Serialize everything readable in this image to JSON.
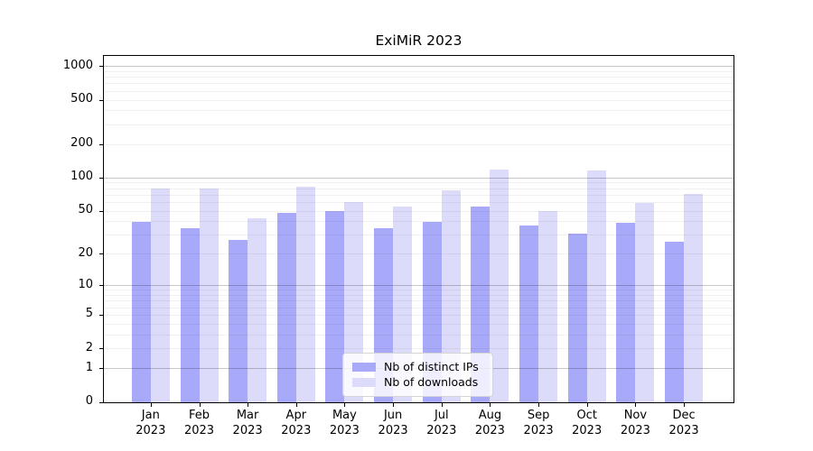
{
  "title": "ExiMiR 2023",
  "chart_data": {
    "type": "bar",
    "title": "ExiMiR 2023",
    "y_scale": "log1p",
    "grid": true,
    "legend_position": "lower center",
    "year": "2023",
    "months": [
      "Jan",
      "Feb",
      "Mar",
      "Apr",
      "May",
      "Jun",
      "Jul",
      "Aug",
      "Sep",
      "Oct",
      "Nov",
      "Dec"
    ],
    "categories": [
      "Jan 2023",
      "Feb 2023",
      "Mar 2023",
      "Apr 2023",
      "May 2023",
      "Jun 2023",
      "Jul 2023",
      "Aug 2023",
      "Sep 2023",
      "Oct 2023",
      "Nov 2023",
      "Dec 2023"
    ],
    "series": [
      {
        "name": "Nb of distinct IPs",
        "color": "#a9a9fa",
        "values": [
          40,
          35,
          27,
          48,
          50,
          35,
          40,
          55,
          37,
          31,
          39,
          26
        ]
      },
      {
        "name": "Nb of downloads",
        "color": "#dcdcfa",
        "values": [
          81,
          80,
          43,
          83,
          60,
          55,
          78,
          120,
          50,
          117,
          59,
          72
        ]
      }
    ],
    "y_ticks": [
      0,
      1,
      2,
      5,
      10,
      20,
      50,
      100,
      200,
      500,
      1000
    ],
    "y_major_gridlines": [
      1,
      10,
      100,
      1000
    ],
    "ylim": [
      0,
      1242
    ],
    "xlabel": "",
    "ylabel": "",
    "colors": {
      "spine": "#000000",
      "grid_major": "#c7c7c7",
      "grid_minor": "#f1f1f1",
      "legend_border": "#d5d5d5"
    }
  }
}
